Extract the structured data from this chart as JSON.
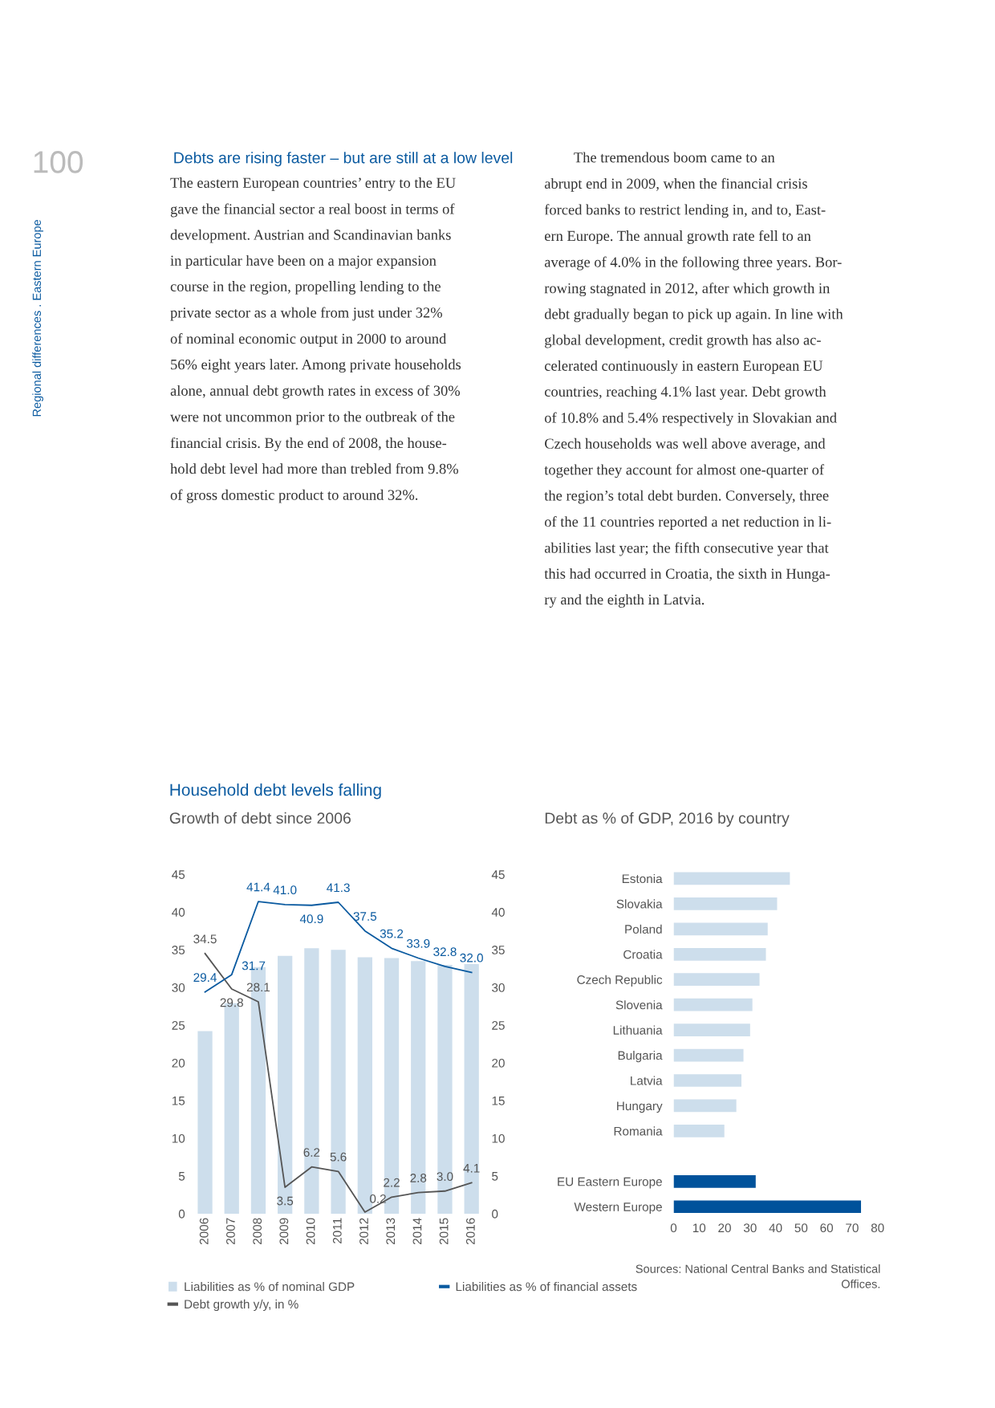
{
  "chart_data": [
    {
      "type": "bar",
      "title": "Household debt levels falling",
      "subtitle": "Growth of debt since 2006",
      "categories": [
        "2006",
        "2007",
        "2008",
        "2009",
        "2010",
        "2011",
        "2012",
        "2013",
        "2014",
        "2015",
        "2016"
      ],
      "series": [
        {
          "name": "Liabilities as % of nominal GDP",
          "type": "bar",
          "color": "#cddeec",
          "values": [
            24.2,
            27.9,
            32.7,
            34.2,
            35.2,
            35.0,
            34.0,
            33.9,
            33.5,
            33.0,
            33.1
          ]
        },
        {
          "name": "Debt growth y/y, in %",
          "type": "line",
          "color": "#555555",
          "values": [
            34.5,
            29.8,
            28.1,
            3.5,
            6.2,
            5.6,
            0.2,
            2.2,
            2.8,
            3.0,
            4.1
          ],
          "value_labels": [
            "34.5",
            "29.8",
            "28.1",
            "3.5",
            "6.2",
            "5.6",
            "0.2",
            "2.2",
            "2.8",
            "3.0",
            "4.1"
          ]
        },
        {
          "name": "Liabilities as % of financial assets",
          "type": "line",
          "color": "#0a5aa0",
          "values": [
            29.4,
            31.7,
            41.4,
            41.0,
            40.9,
            41.3,
            37.5,
            35.2,
            33.9,
            32.8,
            32.0
          ],
          "value_labels": [
            "29.4",
            "31.7",
            "41.4",
            "41.0",
            "40.9",
            "41.3",
            "37.5",
            "35.2",
            "33.9",
            "32.8",
            "32.0"
          ]
        }
      ],
      "ylim": [
        0,
        45
      ],
      "yticks": [
        0,
        5,
        10,
        15,
        20,
        25,
        30,
        35,
        40,
        45
      ],
      "y2lim": [
        0,
        45
      ],
      "y2ticks": [
        0,
        5,
        10,
        15,
        20,
        25,
        30,
        35,
        40,
        45
      ],
      "legend": "bottom",
      "annotations": [
        "100",
        "Regional differences . Eastern Europe",
        "Debts are rising faster – but are still at a low level",
        "The eastern European countries’ entry to the EU\ngave the financial sector a real boost in terms of\ndevelopment. Austrian and Scandinavian banks\nin particular have been on a major expansion\ncourse in the region, propelling lending to the\nprivate sector as a whole from just under 32%\nof nominal economic output in 2000 to around\n56% eight years later. Among private households\nalone, annual debt growth rates in excess of 30%\nwere not uncommon prior to the outbreak of the\nfinancial crisis. By the end of 2008, the house-\nhold debt level had more than trebled from 9.8%\nof gross domestic product to around 32%.",
        "        The tremendous boom came to an\nabrupt end in 2009, when the financial crisis\nforced banks to restrict lending in, and to, East-\nern Europe. The annual growth rate fell to an\naverage of 4.0% in the following three years. Bor-\nrowing stagnated in 2012, after which growth in\ndebt gradually began to pick up again. In line with\nglobal development, credit growth has also ac-\ncelerated continuously in eastern European EU\ncountries, reaching 4.1% last year. Debt growth\nof 10.8% and 5.4% respectively in Slovakian and\nCzech households was well above average, and\ntogether they account for almost one-quarter of\nthe region’s total debt burden. Conversely, three\nof the 11 countries reported a net reduction in li-\nabilities last year; the fifth consecutive year that\nthis had occurred in Croatia, the sixth in Hunga-\nry and the eighth in Latvia."
      ]
    },
    {
      "type": "bar",
      "orientation": "horizontal",
      "title": "Debt as % of GDP, 2016 by country",
      "categories": [
        "Estonia",
        "Slovakia",
        "Poland",
        "Croatia",
        "Czech Republic",
        "Slovenia",
        "Lithuania",
        "Bulgaria",
        "Latvia",
        "Hungary",
        "Romania",
        null,
        "EU Eastern Europe",
        "Western Europe"
      ],
      "values": [
        45.6,
        40.6,
        36.9,
        36.2,
        33.7,
        30.9,
        30.0,
        27.4,
        26.6,
        24.6,
        19.9,
        null,
        32.2,
        73.5
      ],
      "colors": [
        "#cddeec",
        "#cddeec",
        "#cddeec",
        "#cddeec",
        "#cddeec",
        "#cddeec",
        "#cddeec",
        "#cddeec",
        "#cddeec",
        "#cddeec",
        "#cddeec",
        "#cddeec",
        "#00529b",
        "#00529b"
      ],
      "xlim": [
        0,
        80
      ],
      "xticks": [
        0,
        10,
        20,
        30,
        40,
        50,
        60,
        70,
        80
      ],
      "annotations": [
        "Sources: National Central Banks and Statistical\nOffices."
      ]
    }
  ]
}
